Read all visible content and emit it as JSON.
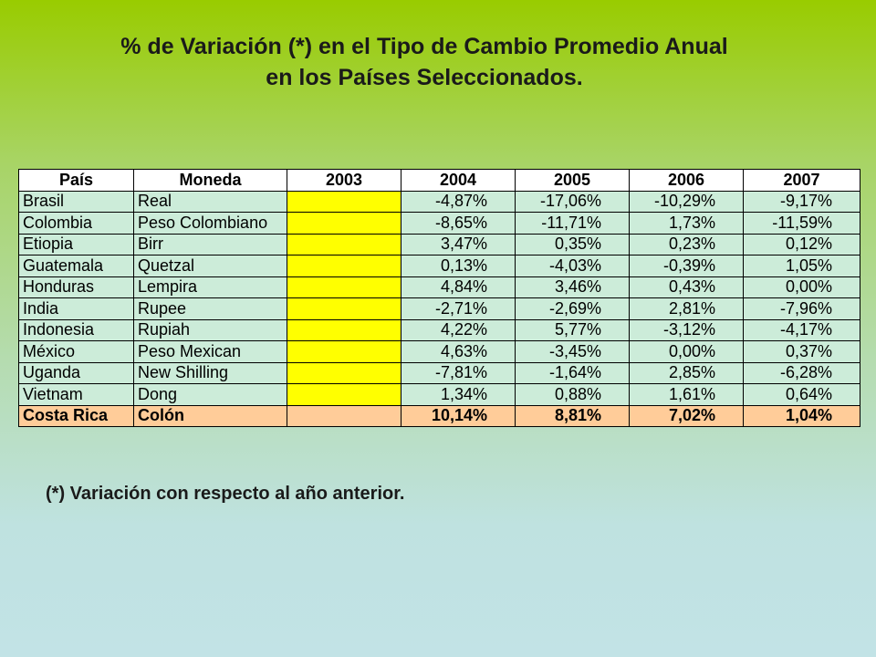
{
  "title": {
    "line1": "% de Variación (*) en el Tipo de Cambio Promedio Anual",
    "line2": "en los Países Seleccionados."
  },
  "table": {
    "headers": [
      "País",
      "Moneda",
      "2003",
      "2004",
      "2005",
      "2006",
      "2007"
    ],
    "rows": [
      {
        "pais": "Brasil",
        "moneda": "Real",
        "y2003": "",
        "y2004": "-4,87%",
        "y2005": "-17,06%",
        "y2006": "-10,29%",
        "y2007": "-9,17%"
      },
      {
        "pais": "Colombia",
        "moneda": "Peso Colombiano",
        "y2003": "",
        "y2004": "-8,65%",
        "y2005": "-11,71%",
        "y2006": "1,73%",
        "y2007": "-11,59%"
      },
      {
        "pais": "Etiopia",
        "moneda": "Birr",
        "y2003": "",
        "y2004": "3,47%",
        "y2005": "0,35%",
        "y2006": "0,23%",
        "y2007": "0,12%"
      },
      {
        "pais": "Guatemala",
        "moneda": "Quetzal",
        "y2003": "",
        "y2004": "0,13%",
        "y2005": "-4,03%",
        "y2006": "-0,39%",
        "y2007": "1,05%"
      },
      {
        "pais": "Honduras",
        "moneda": "Lempira",
        "y2003": "",
        "y2004": "4,84%",
        "y2005": "3,46%",
        "y2006": "0,43%",
        "y2007": "0,00%"
      },
      {
        "pais": "India",
        "moneda": "Rupee",
        "y2003": "",
        "y2004": "-2,71%",
        "y2005": "-2,69%",
        "y2006": "2,81%",
        "y2007": "-7,96%"
      },
      {
        "pais": "Indonesia",
        "moneda": "Rupiah",
        "y2003": "",
        "y2004": "4,22%",
        "y2005": "5,77%",
        "y2006": "-3,12%",
        "y2007": "-4,17%"
      },
      {
        "pais": "México",
        "moneda": "Peso Mexican",
        "y2003": "",
        "y2004": "4,63%",
        "y2005": "-3,45%",
        "y2006": "0,00%",
        "y2007": "0,37%"
      },
      {
        "pais": "Uganda",
        "moneda": "New Shilling",
        "y2003": "",
        "y2004": "-7,81%",
        "y2005": "-1,64%",
        "y2006": "2,85%",
        "y2007": "-6,28%"
      },
      {
        "pais": "Vietnam",
        "moneda": "Dong",
        "y2003": "",
        "y2004": "1,34%",
        "y2005": "0,88%",
        "y2006": "1,61%",
        "y2007": "0,64%"
      },
      {
        "pais": "Costa Rica",
        "moneda": "Colón",
        "y2003": "",
        "y2004": "10,14%",
        "y2005": "8,81%",
        "y2006": "7,02%",
        "y2007": "1,04%"
      }
    ]
  },
  "footnote": "(*) Variación con respecto al año anterior.",
  "colors": {
    "background_top": "#99cc00",
    "background_bottom": "#c2e3e6",
    "row_fill": "#ccecd9",
    "year_2003_fill": "#ffff00",
    "highlight_row_fill": "#ffcc99",
    "header_fill": "#ffffff"
  }
}
